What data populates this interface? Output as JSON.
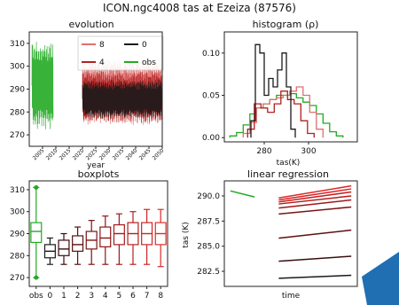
{
  "figure": {
    "title": "ICON.ngc4008 tas at Ezeiza (87576)"
  },
  "chart_data": [
    {
      "type": "line",
      "title": "evolution",
      "xlabel": "year",
      "ylabel": "",
      "xlim": [
        2000,
        2050
      ],
      "ylim": [
        265,
        315
      ],
      "x_ticks": [
        2005,
        2010,
        2015,
        2020,
        2025,
        2030,
        2035,
        2040,
        2045,
        2050
      ],
      "y_ticks": [
        270,
        280,
        290,
        300,
        310
      ],
      "legend": {
        "placement": "top-right",
        "entries": [
          "8",
          "0",
          "4",
          "obs"
        ]
      },
      "series": [
        {
          "name": "obs",
          "color": "#22aa22",
          "x_range": [
            2001,
            2009
          ],
          "seasonal_range": [
            272,
            311
          ]
        },
        {
          "name": "8",
          "color": "#e07070",
          "x_range": [
            2020,
            2050
          ],
          "seasonal_range": [
            274,
            303
          ]
        },
        {
          "name": "4",
          "color": "#b02020",
          "x_range": [
            2020,
            2050
          ],
          "seasonal_range": [
            275,
            298
          ]
        },
        {
          "name": "0",
          "color": "#1a1a1a",
          "x_range": [
            2020,
            2050
          ],
          "seasonal_range": [
            277,
            294
          ]
        }
      ]
    },
    {
      "type": "line",
      "title": "histogram (ρ)",
      "xlabel": "tas(K)",
      "ylabel": "",
      "xlim": [
        262,
        322
      ],
      "ylim": [
        -0.005,
        0.125
      ],
      "x_ticks": [
        280,
        300
      ],
      "y_ticks": [
        0.0,
        0.05,
        0.1
      ],
      "y_tick_labels": [
        "0.00",
        "0.05",
        "0.10"
      ],
      "series": [
        {
          "name": "obs",
          "color": "#22aa22",
          "x": [
            266,
            269,
            272,
            275,
            278,
            281,
            284,
            287,
            290,
            293,
            296,
            299,
            302,
            305,
            308,
            311,
            314
          ],
          "values": [
            0.002,
            0.006,
            0.015,
            0.028,
            0.035,
            0.04,
            0.045,
            0.05,
            0.05,
            0.052,
            0.047,
            0.042,
            0.038,
            0.028,
            0.017,
            0.007,
            0.002
          ]
        },
        {
          "name": "8",
          "color": "#e07070",
          "x": [
            272,
            275,
            278,
            281,
            284,
            287,
            290,
            293,
            296,
            299,
            302,
            305
          ],
          "values": [
            0.005,
            0.018,
            0.035,
            0.04,
            0.045,
            0.047,
            0.05,
            0.055,
            0.06,
            0.05,
            0.03,
            0.01
          ]
        },
        {
          "name": "4",
          "color": "#b02020",
          "x": [
            274,
            277,
            280,
            283,
            286,
            289,
            292,
            295,
            298,
            301
          ],
          "values": [
            0.01,
            0.04,
            0.035,
            0.03,
            0.04,
            0.055,
            0.045,
            0.04,
            0.02,
            0.005
          ]
        },
        {
          "name": "0",
          "color": "#1a1a1a",
          "x": [
            275,
            277,
            279,
            281,
            283,
            285,
            287,
            289,
            291,
            293
          ],
          "values": [
            0.02,
            0.11,
            0.1,
            0.05,
            0.07,
            0.06,
            0.08,
            0.1,
            0.06,
            0.01
          ]
        }
      ]
    },
    {
      "type": "box",
      "title": "boxplots",
      "categories": [
        "obs",
        "0",
        "1",
        "2",
        "3",
        "4",
        "5",
        "6",
        "7",
        "8"
      ],
      "ylim": [
        266,
        314
      ],
      "y_ticks": [
        270,
        280,
        290,
        300,
        310
      ],
      "boxes": [
        {
          "category": "obs",
          "color": "#22aa22",
          "min": 270,
          "q1": 286,
          "median": 291,
          "q3": 295,
          "max": 311
        },
        {
          "category": "0",
          "color": "#1a1a1a",
          "min": 276,
          "q1": 279,
          "median": 282,
          "q3": 285,
          "max": 288
        },
        {
          "category": "1",
          "color": "#3a0e0e",
          "min": 276,
          "q1": 280,
          "median": 283,
          "q3": 287,
          "max": 290
        },
        {
          "category": "2",
          "color": "#5c1010",
          "min": 276,
          "q1": 282,
          "median": 285,
          "q3": 289,
          "max": 293
        },
        {
          "category": "3",
          "color": "#7a1414",
          "min": 276,
          "q1": 283,
          "median": 287,
          "q3": 291,
          "max": 296
        },
        {
          "category": "4",
          "color": "#8e1616",
          "min": 276,
          "q1": 284,
          "median": 288,
          "q3": 293,
          "max": 298
        },
        {
          "category": "5",
          "color": "#a41a1a",
          "min": 276,
          "q1": 285,
          "median": 290,
          "q3": 294,
          "max": 299
        },
        {
          "category": "6",
          "color": "#b81e1e",
          "min": 276,
          "q1": 285,
          "median": 290,
          "q3": 295,
          "max": 300
        },
        {
          "category": "7",
          "color": "#cc2424",
          "min": 276,
          "q1": 285,
          "median": 290,
          "q3": 295,
          "max": 301
        },
        {
          "category": "8",
          "color": "#dd2c2c",
          "min": 275,
          "q1": 285,
          "median": 290,
          "q3": 295,
          "max": 301
        }
      ]
    },
    {
      "type": "line",
      "title": "linear regression",
      "xlabel": "time",
      "ylabel": "tas (K)",
      "ylim": [
        281,
        291.5
      ],
      "y_ticks": [
        282.5,
        285.0,
        287.5,
        290.0
      ],
      "y_tick_labels": [
        "282.5",
        "285.0",
        "287.5",
        "290.0"
      ],
      "series": [
        {
          "name": "obs",
          "color": "#22aa22",
          "x": [
            0.0,
            0.2
          ],
          "values": [
            290.5,
            289.9
          ]
        },
        {
          "name": "8",
          "color": "#e02828",
          "x": [
            0.4,
            1.0
          ],
          "values": [
            289.8,
            291.0
          ]
        },
        {
          "name": "7",
          "color": "#d42424",
          "x": [
            0.4,
            1.0
          ],
          "values": [
            289.6,
            290.7
          ]
        },
        {
          "name": "6",
          "color": "#c82020",
          "x": [
            0.4,
            1.0
          ],
          "values": [
            289.4,
            290.4
          ]
        },
        {
          "name": "5",
          "color": "#b41c1c",
          "x": [
            0.4,
            1.0
          ],
          "values": [
            289.2,
            290.0
          ]
        },
        {
          "name": "4",
          "color": "#a01818",
          "x": [
            0.4,
            1.0
          ],
          "values": [
            288.8,
            289.6
          ]
        },
        {
          "name": "3",
          "color": "#7a1414",
          "x": [
            0.4,
            1.0
          ],
          "values": [
            288.2,
            288.9
          ]
        },
        {
          "name": "2",
          "color": "#5c1010",
          "x": [
            0.4,
            1.0
          ],
          "values": [
            285.8,
            286.6
          ]
        },
        {
          "name": "1",
          "color": "#3a0e0e",
          "x": [
            0.4,
            1.0
          ],
          "values": [
            283.5,
            284.0
          ]
        },
        {
          "name": "0",
          "color": "#1a1a1a",
          "x": [
            0.4,
            1.0
          ],
          "values": [
            281.8,
            282.1
          ]
        }
      ]
    }
  ]
}
